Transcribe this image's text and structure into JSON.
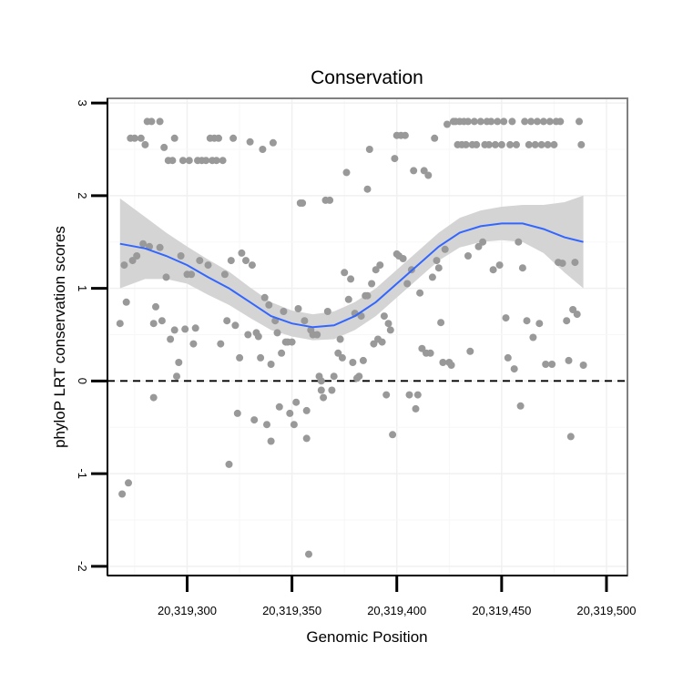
{
  "chart_data": {
    "type": "scatter",
    "title": "Conservation",
    "xlabel": "Genomic Position",
    "ylabel": "phyloP LRT conservation scores",
    "xlim": [
      20319262,
      20319510
    ],
    "ylim": [
      -2.1,
      3.05
    ],
    "x_ticks": [
      20319300,
      20319350,
      20319400,
      20319450,
      20319500
    ],
    "x_tick_labels": [
      "20,319,300",
      "20,319,350",
      "20,319,400",
      "20,319,450",
      "20,319,500"
    ],
    "y_ticks": [
      -2,
      -1,
      0,
      1,
      2,
      3
    ],
    "y_tick_labels": [
      "-2",
      "-1",
      "0",
      "1",
      "2",
      "3"
    ],
    "reference_line": {
      "y": 0,
      "style": "dashed"
    },
    "colors": {
      "points": "#999999",
      "smooth_line": "#3366ff",
      "ribbon": "#d4d4d4",
      "frame": "#808080"
    },
    "points": [
      [
        20319268,
        0.62
      ],
      [
        20319269,
        -1.22
      ],
      [
        20319270,
        1.25
      ],
      [
        20319271,
        0.85
      ],
      [
        20319272,
        -1.1
      ],
      [
        20319273,
        2.62
      ],
      [
        20319274,
        1.3
      ],
      [
        20319275,
        2.62
      ],
      [
        20319276,
        1.35
      ],
      [
        20319278,
        2.62
      ],
      [
        20319279,
        1.48
      ],
      [
        20319280,
        2.55
      ],
      [
        20319281,
        2.8
      ],
      [
        20319282,
        1.45
      ],
      [
        20319283,
        2.8
      ],
      [
        20319284,
        -0.18
      ],
      [
        20319284,
        0.62
      ],
      [
        20319285,
        0.8
      ],
      [
        20319287,
        1.44
      ],
      [
        20319287,
        2.8
      ],
      [
        20319288,
        0.65
      ],
      [
        20319289,
        2.52
      ],
      [
        20319290,
        1.12
      ],
      [
        20319291,
        2.38
      ],
      [
        20319292,
        0.45
      ],
      [
        20319293,
        2.38
      ],
      [
        20319294,
        0.55
      ],
      [
        20319294,
        2.62
      ],
      [
        20319295,
        0.05
      ],
      [
        20319296,
        0.2
      ],
      [
        20319297,
        1.35
      ],
      [
        20319298,
        2.38
      ],
      [
        20319299,
        0.56
      ],
      [
        20319300,
        1.15
      ],
      [
        20319301,
        2.38
      ],
      [
        20319302,
        1.15
      ],
      [
        20319303,
        0.4
      ],
      [
        20319304,
        0.57
      ],
      [
        20319305,
        2.38
      ],
      [
        20319306,
        1.3
      ],
      [
        20319307,
        2.38
      ],
      [
        20319309,
        2.38
      ],
      [
        20319310,
        1.25
      ],
      [
        20319311,
        2.62
      ],
      [
        20319312,
        2.38
      ],
      [
        20319313,
        2.62
      ],
      [
        20319314,
        2.38
      ],
      [
        20319315,
        2.62
      ],
      [
        20319316,
        0.4
      ],
      [
        20319317,
        2.38
      ],
      [
        20319318,
        1.15
      ],
      [
        20319319,
        0.65
      ],
      [
        20319320,
        -0.9
      ],
      [
        20319321,
        1.3
      ],
      [
        20319322,
        2.62
      ],
      [
        20319323,
        0.6
      ],
      [
        20319324,
        -0.35
      ],
      [
        20319325,
        0.25
      ],
      [
        20319326,
        1.38
      ],
      [
        20319328,
        1.3
      ],
      [
        20319329,
        0.5
      ],
      [
        20319330,
        2.58
      ],
      [
        20319331,
        1.25
      ],
      [
        20319332,
        -0.42
      ],
      [
        20319333,
        0.52
      ],
      [
        20319334,
        0.48
      ],
      [
        20319335,
        0.25
      ],
      [
        20319336,
        2.5
      ],
      [
        20319337,
        0.9
      ],
      [
        20319338,
        -0.47
      ],
      [
        20319339,
        0.82
      ],
      [
        20319340,
        0.18
      ],
      [
        20319340,
        -0.65
      ],
      [
        20319341,
        2.57
      ],
      [
        20319342,
        0.65
      ],
      [
        20319343,
        0.52
      ],
      [
        20319344,
        -0.28
      ],
      [
        20319345,
        0.3
      ],
      [
        20319346,
        0.75
      ],
      [
        20319347,
        0.42
      ],
      [
        20319348,
        0.42
      ],
      [
        20319349,
        -0.35
      ],
      [
        20319350,
        0.42
      ],
      [
        20319351,
        -0.47
      ],
      [
        20319352,
        -0.23
      ],
      [
        20319353,
        0.78
      ],
      [
        20319354,
        1.92
      ],
      [
        20319355,
        1.92
      ],
      [
        20319356,
        0.65
      ],
      [
        20319357,
        -0.32
      ],
      [
        20319357,
        -0.62
      ],
      [
        20319358,
        -1.87
      ],
      [
        20319359,
        0.55
      ],
      [
        20319360,
        0.5
      ],
      [
        20319362,
        0.5
      ],
      [
        20319363,
        0.05
      ],
      [
        20319364,
        -0.1
      ],
      [
        20319364,
        0.0
      ],
      [
        20319365,
        -0.18
      ],
      [
        20319366,
        1.95
      ],
      [
        20319367,
        0.75
      ],
      [
        20319368,
        1.95
      ],
      [
        20319369,
        -0.1
      ],
      [
        20319370,
        0.05
      ],
      [
        20319372,
        0.3
      ],
      [
        20319373,
        0.45
      ],
      [
        20319374,
        0.25
      ],
      [
        20319375,
        1.17
      ],
      [
        20319376,
        2.25
      ],
      [
        20319377,
        0.88
      ],
      [
        20319378,
        1.1
      ],
      [
        20319379,
        0.2
      ],
      [
        20319380,
        0.73
      ],
      [
        20319381,
        0.03
      ],
      [
        20319382,
        0.05
      ],
      [
        20319383,
        0.7
      ],
      [
        20319384,
        0.22
      ],
      [
        20319385,
        0.92
      ],
      [
        20319386,
        2.07
      ],
      [
        20319386,
        0.92
      ],
      [
        20319387,
        2.5
      ],
      [
        20319388,
        1.05
      ],
      [
        20319389,
        0.4
      ],
      [
        20319390,
        1.2
      ],
      [
        20319391,
        0.45
      ],
      [
        20319392,
        1.25
      ],
      [
        20319393,
        0.42
      ],
      [
        20319394,
        0.7
      ],
      [
        20319395,
        -0.15
      ],
      [
        20319396,
        0.62
      ],
      [
        20319397,
        0.55
      ],
      [
        20319398,
        -0.58
      ],
      [
        20319399,
        2.4
      ],
      [
        20319400,
        1.37
      ],
      [
        20319400,
        2.65
      ],
      [
        20319401,
        1.35
      ],
      [
        20319402,
        2.65
      ],
      [
        20319403,
        1.32
      ],
      [
        20319404,
        2.65
      ],
      [
        20319405,
        1.05
      ],
      [
        20319406,
        -0.15
      ],
      [
        20319407,
        1.2
      ],
      [
        20319408,
        2.27
      ],
      [
        20319409,
        -0.3
      ],
      [
        20319410,
        -0.15
      ],
      [
        20319411,
        0.95
      ],
      [
        20319412,
        0.35
      ],
      [
        20319413,
        2.27
      ],
      [
        20319414,
        0.3
      ],
      [
        20319415,
        2.22
      ],
      [
        20319416,
        0.3
      ],
      [
        20319417,
        1.12
      ],
      [
        20319418,
        2.62
      ],
      [
        20319419,
        1.3
      ],
      [
        20319420,
        1.22
      ],
      [
        20319421,
        0.63
      ],
      [
        20319422,
        0.2
      ],
      [
        20319423,
        1.42
      ],
      [
        20319424,
        2.77
      ],
      [
        20319425,
        0.2
      ],
      [
        20319426,
        0.17
      ],
      [
        20319427,
        2.8
      ],
      [
        20319428,
        2.8
      ],
      [
        20319429,
        2.55
      ],
      [
        20319430,
        2.8
      ],
      [
        20319431,
        2.55
      ],
      [
        20319432,
        2.8
      ],
      [
        20319433,
        2.55
      ],
      [
        20319434,
        1.35
      ],
      [
        20319434,
        2.8
      ],
      [
        20319435,
        0.32
      ],
      [
        20319436,
        2.55
      ],
      [
        20319437,
        2.8
      ],
      [
        20319438,
        2.55
      ],
      [
        20319439,
        1.45
      ],
      [
        20319440,
        2.8
      ],
      [
        20319441,
        1.5
      ],
      [
        20319442,
        2.55
      ],
      [
        20319443,
        2.8
      ],
      [
        20319444,
        2.55
      ],
      [
        20319445,
        2.8
      ],
      [
        20319446,
        1.2
      ],
      [
        20319447,
        2.55
      ],
      [
        20319448,
        2.8
      ],
      [
        20319449,
        1.25
      ],
      [
        20319450,
        2.55
      ],
      [
        20319451,
        2.8
      ],
      [
        20319452,
        0.68
      ],
      [
        20319453,
        0.25
      ],
      [
        20319454,
        2.55
      ],
      [
        20319455,
        2.8
      ],
      [
        20319456,
        0.13
      ],
      [
        20319457,
        2.55
      ],
      [
        20319458,
        1.5
      ],
      [
        20319459,
        -0.27
      ],
      [
        20319460,
        1.22
      ],
      [
        20319461,
        2.8
      ],
      [
        20319462,
        0.65
      ],
      [
        20319463,
        2.55
      ],
      [
        20319464,
        2.8
      ],
      [
        20319465,
        0.47
      ],
      [
        20319466,
        2.55
      ],
      [
        20319467,
        2.8
      ],
      [
        20319468,
        0.62
      ],
      [
        20319469,
        2.55
      ],
      [
        20319470,
        2.8
      ],
      [
        20319471,
        0.18
      ],
      [
        20319472,
        2.55
      ],
      [
        20319473,
        2.8
      ],
      [
        20319474,
        0.18
      ],
      [
        20319475,
        2.55
      ],
      [
        20319476,
        2.8
      ],
      [
        20319477,
        1.28
      ],
      [
        20319478,
        2.8
      ],
      [
        20319479,
        1.27
      ],
      [
        20319481,
        0.65
      ],
      [
        20319482,
        0.22
      ],
      [
        20319483,
        -0.6
      ],
      [
        20319484,
        0.77
      ],
      [
        20319485,
        1.28
      ],
      [
        20319486,
        0.72
      ],
      [
        20319487,
        2.8
      ],
      [
        20319488,
        2.55
      ],
      [
        20319489,
        0.17
      ]
    ],
    "smooth_line": [
      [
        20319268,
        1.48
      ],
      [
        20319280,
        1.43
      ],
      [
        20319290,
        1.35
      ],
      [
        20319300,
        1.25
      ],
      [
        20319310,
        1.12
      ],
      [
        20319320,
        1.0
      ],
      [
        20319330,
        0.85
      ],
      [
        20319340,
        0.7
      ],
      [
        20319350,
        0.62
      ],
      [
        20319360,
        0.58
      ],
      [
        20319370,
        0.6
      ],
      [
        20319380,
        0.7
      ],
      [
        20319390,
        0.85
      ],
      [
        20319400,
        1.05
      ],
      [
        20319410,
        1.25
      ],
      [
        20319420,
        1.45
      ],
      [
        20319430,
        1.6
      ],
      [
        20319440,
        1.67
      ],
      [
        20319450,
        1.7
      ],
      [
        20319460,
        1.7
      ],
      [
        20319470,
        1.64
      ],
      [
        20319480,
        1.55
      ],
      [
        20319489,
        1.5
      ]
    ],
    "ribbon_upper": [
      [
        20319268,
        1.97
      ],
      [
        20319280,
        1.77
      ],
      [
        20319290,
        1.6
      ],
      [
        20319300,
        1.45
      ],
      [
        20319310,
        1.31
      ],
      [
        20319320,
        1.18
      ],
      [
        20319330,
        1.01
      ],
      [
        20319340,
        0.85
      ],
      [
        20319350,
        0.76
      ],
      [
        20319360,
        0.72
      ],
      [
        20319370,
        0.75
      ],
      [
        20319380,
        0.85
      ],
      [
        20319390,
        1.0
      ],
      [
        20319400,
        1.2
      ],
      [
        20319410,
        1.4
      ],
      [
        20319420,
        1.6
      ],
      [
        20319430,
        1.76
      ],
      [
        20319440,
        1.84
      ],
      [
        20319450,
        1.88
      ],
      [
        20319460,
        1.9
      ],
      [
        20319470,
        1.9
      ],
      [
        20319480,
        1.93
      ],
      [
        20319489,
        2.0
      ]
    ],
    "ribbon_lower": [
      [
        20319268,
        1.0
      ],
      [
        20319280,
        1.1
      ],
      [
        20319290,
        1.1
      ],
      [
        20319300,
        1.05
      ],
      [
        20319310,
        0.93
      ],
      [
        20319320,
        0.82
      ],
      [
        20319330,
        0.68
      ],
      [
        20319340,
        0.55
      ],
      [
        20319350,
        0.48
      ],
      [
        20319360,
        0.44
      ],
      [
        20319370,
        0.45
      ],
      [
        20319380,
        0.55
      ],
      [
        20319390,
        0.7
      ],
      [
        20319400,
        0.9
      ],
      [
        20319410,
        1.1
      ],
      [
        20319420,
        1.3
      ],
      [
        20319430,
        1.44
      ],
      [
        20319440,
        1.5
      ],
      [
        20319450,
        1.52
      ],
      [
        20319460,
        1.5
      ],
      [
        20319470,
        1.38
      ],
      [
        20319480,
        1.17
      ],
      [
        20319489,
        1.0
      ]
    ]
  }
}
